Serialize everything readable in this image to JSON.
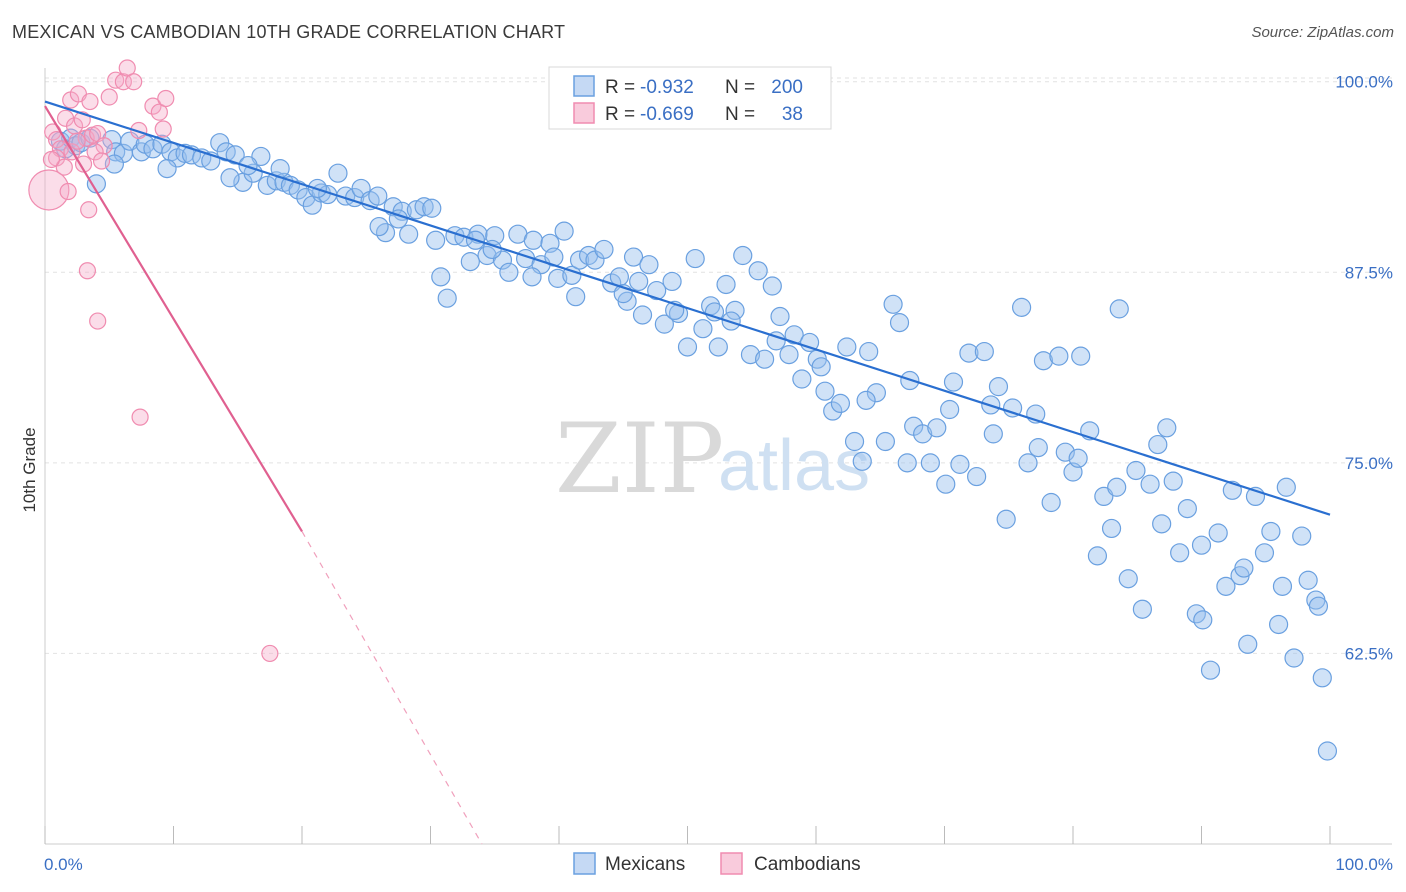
{
  "title": "MEXICAN VS CAMBODIAN 10TH GRADE CORRELATION CHART",
  "source": "Source: ZipAtlas.com",
  "watermark": {
    "zip": "ZIP",
    "atlas": "atlas"
  },
  "colors": {
    "mexicans": "#6aa0e0",
    "cambodians": "#f08cb0",
    "trend_mex": "#2a6fd0",
    "trend_cam": "#e06090",
    "tick": "#3a6fc4"
  },
  "legend": {
    "rows": [
      {
        "r_label": "R =",
        "r_value": "-0.932",
        "n_label": "N =",
        "n_value": "200"
      },
      {
        "r_label": "R =",
        "r_value": "-0.669",
        "n_label": "N =",
        "n_value": "38"
      }
    ],
    "bottom": [
      "Mexicans",
      "Cambodians"
    ]
  },
  "chart_data": {
    "type": "scatter",
    "xlabel": "",
    "ylabel": "10th Grade",
    "xlim": [
      0,
      100
    ],
    "ylim": [
      50,
      100.9
    ],
    "x_ticks": [
      "0.0%",
      "100.0%"
    ],
    "y_ticks": [
      {
        "value": 62.5,
        "label": "62.5%"
      },
      {
        "value": 75.0,
        "label": "75.0%"
      },
      {
        "value": 87.5,
        "label": "87.5%"
      },
      {
        "value": 100.0,
        "label": "100.0%"
      }
    ],
    "grid": true,
    "legend_position": "top-center",
    "series": [
      {
        "name": "Mexicans",
        "points": [
          [
            1.2,
            96.1
          ],
          [
            1.6,
            95.6
          ],
          [
            2.0,
            96.3
          ],
          [
            2.4,
            95.8
          ],
          [
            2.8,
            96.0
          ],
          [
            3.5,
            96.3
          ],
          [
            4.0,
            93.3
          ],
          [
            5.2,
            96.2
          ],
          [
            5.5,
            95.4
          ],
          [
            6.1,
            95.3
          ],
          [
            6.6,
            96.1
          ],
          [
            7.5,
            95.4
          ],
          [
            7.8,
            95.9
          ],
          [
            8.4,
            95.6
          ],
          [
            9.1,
            95.9
          ],
          [
            9.8,
            95.4
          ],
          [
            10.3,
            95.0
          ],
          [
            10.9,
            95.3
          ],
          [
            11.4,
            95.2
          ],
          [
            12.2,
            95.0
          ],
          [
            12.9,
            94.8
          ],
          [
            13.6,
            96.0
          ],
          [
            14.1,
            95.4
          ],
          [
            14.8,
            95.2
          ],
          [
            15.4,
            93.4
          ],
          [
            16.2,
            94.0
          ],
          [
            16.8,
            95.1
          ],
          [
            17.3,
            93.2
          ],
          [
            18.0,
            93.5
          ],
          [
            18.6,
            93.4
          ],
          [
            19.1,
            93.2
          ],
          [
            19.7,
            92.9
          ],
          [
            20.3,
            92.4
          ],
          [
            20.8,
            91.9
          ],
          [
            21.5,
            92.7
          ],
          [
            22.0,
            92.6
          ],
          [
            22.8,
            94.0
          ],
          [
            23.4,
            92.5
          ],
          [
            24.1,
            92.4
          ],
          [
            24.6,
            93.0
          ],
          [
            25.3,
            92.2
          ],
          [
            25.9,
            92.5
          ],
          [
            26.5,
            90.1
          ],
          [
            27.1,
            91.8
          ],
          [
            27.8,
            91.5
          ],
          [
            28.3,
            90.0
          ],
          [
            28.9,
            91.6
          ],
          [
            29.5,
            91.8
          ],
          [
            30.1,
            91.7
          ],
          [
            30.8,
            87.2
          ],
          [
            31.3,
            85.8
          ],
          [
            31.9,
            89.9
          ],
          [
            32.6,
            89.8
          ],
          [
            33.1,
            88.2
          ],
          [
            33.7,
            90.0
          ],
          [
            34.4,
            88.6
          ],
          [
            35.0,
            89.9
          ],
          [
            35.6,
            88.3
          ],
          [
            36.1,
            87.5
          ],
          [
            36.8,
            90.0
          ],
          [
            37.4,
            88.4
          ],
          [
            38.0,
            89.6
          ],
          [
            38.6,
            88.0
          ],
          [
            39.3,
            89.4
          ],
          [
            39.9,
            87.1
          ],
          [
            40.4,
            90.2
          ],
          [
            41.0,
            87.3
          ],
          [
            41.6,
            88.3
          ],
          [
            42.3,
            88.6
          ],
          [
            42.8,
            88.3
          ],
          [
            43.5,
            89.0
          ],
          [
            44.1,
            86.8
          ],
          [
            44.7,
            87.2
          ],
          [
            45.3,
            85.6
          ],
          [
            45.8,
            88.5
          ],
          [
            46.5,
            84.7
          ],
          [
            47.0,
            88.0
          ],
          [
            47.6,
            86.3
          ],
          [
            48.2,
            84.1
          ],
          [
            48.8,
            86.9
          ],
          [
            49.3,
            84.8
          ],
          [
            50.0,
            82.6
          ],
          [
            50.6,
            88.4
          ],
          [
            51.2,
            83.8
          ],
          [
            51.8,
            85.3
          ],
          [
            52.4,
            82.6
          ],
          [
            53.0,
            86.7
          ],
          [
            53.7,
            85.0
          ],
          [
            54.3,
            88.6
          ],
          [
            54.9,
            82.1
          ],
          [
            55.5,
            87.6
          ],
          [
            56.0,
            81.8
          ],
          [
            56.6,
            86.6
          ],
          [
            57.2,
            84.6
          ],
          [
            57.9,
            82.1
          ],
          [
            58.3,
            83.4
          ],
          [
            58.9,
            80.5
          ],
          [
            59.5,
            82.9
          ],
          [
            60.1,
            81.8
          ],
          [
            60.7,
            79.7
          ],
          [
            61.3,
            78.4
          ],
          [
            61.9,
            78.9
          ],
          [
            62.4,
            82.6
          ],
          [
            63.0,
            76.4
          ],
          [
            63.6,
            75.1
          ],
          [
            64.1,
            82.3
          ],
          [
            64.7,
            79.6
          ],
          [
            65.4,
            76.4
          ],
          [
            66.0,
            85.4
          ],
          [
            66.5,
            84.2
          ],
          [
            67.1,
            75.0
          ],
          [
            67.6,
            77.4
          ],
          [
            68.3,
            76.9
          ],
          [
            68.9,
            75.0
          ],
          [
            69.4,
            77.3
          ],
          [
            70.1,
            73.6
          ],
          [
            70.7,
            80.3
          ],
          [
            71.2,
            74.9
          ],
          [
            71.9,
            82.2
          ],
          [
            72.5,
            74.1
          ],
          [
            73.1,
            82.3
          ],
          [
            73.6,
            78.8
          ],
          [
            74.2,
            80.0
          ],
          [
            74.8,
            71.3
          ],
          [
            75.3,
            78.6
          ],
          [
            76.0,
            85.2
          ],
          [
            76.5,
            75.0
          ],
          [
            77.1,
            78.2
          ],
          [
            77.7,
            81.7
          ],
          [
            78.3,
            72.4
          ],
          [
            78.9,
            82.0
          ],
          [
            79.4,
            75.7
          ],
          [
            80.0,
            74.4
          ],
          [
            80.6,
            82.0
          ],
          [
            81.3,
            77.1
          ],
          [
            81.9,
            68.9
          ],
          [
            82.4,
            72.8
          ],
          [
            83.0,
            70.7
          ],
          [
            83.6,
            85.1
          ],
          [
            84.3,
            67.4
          ],
          [
            84.9,
            74.5
          ],
          [
            85.4,
            65.4
          ],
          [
            86.0,
            73.6
          ],
          [
            86.6,
            76.2
          ],
          [
            87.3,
            77.3
          ],
          [
            87.8,
            73.8
          ],
          [
            88.3,
            69.1
          ],
          [
            88.9,
            72.0
          ],
          [
            89.6,
            65.1
          ],
          [
            90.1,
            64.7
          ],
          [
            90.7,
            61.4
          ],
          [
            91.3,
            70.4
          ],
          [
            91.9,
            66.9
          ],
          [
            92.4,
            73.2
          ],
          [
            93.0,
            67.6
          ],
          [
            93.6,
            63.1
          ],
          [
            94.2,
            72.8
          ],
          [
            94.9,
            69.1
          ],
          [
            95.4,
            70.5
          ],
          [
            96.0,
            64.4
          ],
          [
            96.6,
            73.4
          ],
          [
            97.2,
            62.2
          ],
          [
            97.8,
            70.2
          ],
          [
            98.3,
            67.3
          ],
          [
            98.9,
            66.0
          ],
          [
            99.4,
            60.9
          ],
          [
            99.8,
            56.1
          ],
          [
            5.4,
            94.6
          ],
          [
            9.5,
            94.3
          ],
          [
            14.4,
            93.7
          ],
          [
            18.3,
            94.3
          ],
          [
            26.0,
            90.5
          ],
          [
            30.4,
            89.6
          ],
          [
            34.8,
            89.0
          ],
          [
            37.9,
            87.2
          ],
          [
            41.3,
            85.9
          ],
          [
            45.0,
            86.1
          ],
          [
            49.0,
            85.0
          ],
          [
            53.4,
            84.3
          ],
          [
            56.9,
            83.0
          ],
          [
            60.4,
            81.3
          ],
          [
            63.9,
            79.1
          ],
          [
            67.3,
            80.4
          ],
          [
            70.4,
            78.5
          ],
          [
            73.8,
            76.9
          ],
          [
            77.3,
            76.0
          ],
          [
            80.4,
            75.3
          ],
          [
            83.4,
            73.4
          ],
          [
            86.9,
            71.0
          ],
          [
            90.0,
            69.6
          ],
          [
            93.3,
            68.1
          ],
          [
            96.3,
            66.9
          ],
          [
            99.1,
            65.6
          ],
          [
            15.8,
            94.5
          ],
          [
            21.2,
            93.0
          ],
          [
            27.5,
            91.0
          ],
          [
            33.5,
            89.6
          ],
          [
            39.6,
            88.5
          ],
          [
            46.2,
            86.9
          ],
          [
            52.1,
            84.9
          ]
        ]
      },
      {
        "name": "Cambodians",
        "points": [
          [
            0.3,
            92.9
          ],
          [
            0.6,
            96.7
          ],
          [
            0.9,
            96.2
          ],
          [
            1.2,
            95.6
          ],
          [
            1.6,
            97.6
          ],
          [
            2.0,
            98.8
          ],
          [
            2.3,
            97.1
          ],
          [
            2.6,
            99.2
          ],
          [
            2.9,
            97.5
          ],
          [
            3.2,
            96.3
          ],
          [
            3.5,
            98.7
          ],
          [
            3.7,
            96.5
          ],
          [
            4.1,
            96.6
          ],
          [
            4.6,
            95.8
          ],
          [
            5.0,
            99.0
          ],
          [
            5.5,
            100.1
          ],
          [
            6.1,
            100.0
          ],
          [
            6.4,
            100.9
          ],
          [
            6.9,
            100.0
          ],
          [
            7.3,
            96.8
          ],
          [
            8.4,
            98.4
          ],
          [
            8.9,
            98.0
          ],
          [
            9.2,
            96.9
          ],
          [
            9.4,
            98.9
          ],
          [
            0.9,
            95.0
          ],
          [
            1.5,
            94.4
          ],
          [
            2.1,
            95.4
          ],
          [
            2.5,
            96.1
          ],
          [
            3.0,
            94.6
          ],
          [
            3.9,
            95.4
          ],
          [
            4.4,
            94.8
          ],
          [
            1.8,
            92.8
          ],
          [
            3.4,
            91.6
          ],
          [
            3.3,
            87.6
          ],
          [
            4.1,
            84.3
          ],
          [
            7.4,
            78.0
          ],
          [
            17.5,
            62.5
          ],
          [
            0.5,
            94.9
          ]
        ]
      }
    ],
    "trend_lines": [
      {
        "series": "Mexicans",
        "from": [
          0,
          98.7
        ],
        "to": [
          100,
          71.6
        ]
      },
      {
        "series": "Cambodians",
        "from": [
          0,
          98.4
        ],
        "to": [
          20,
          70.5
        ],
        "dashed_to": [
          34,
          50.0
        ]
      }
    ]
  }
}
